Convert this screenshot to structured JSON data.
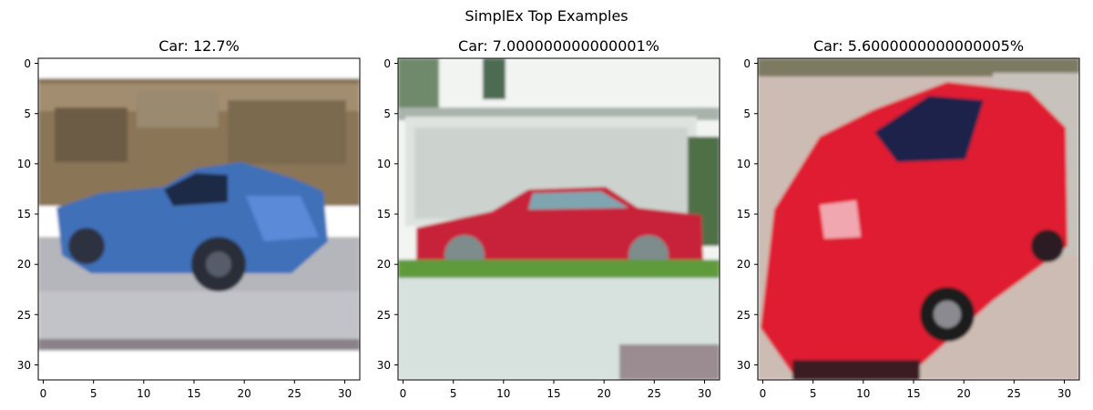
{
  "figure": {
    "title": "SimplEx Top Examples"
  },
  "panels": [
    {
      "title": "Car: 12.7%",
      "image": "thumbnail-blue-sports-car",
      "xticks": [
        "0",
        "5",
        "10",
        "15",
        "20",
        "25",
        "30"
      ],
      "yticks": [
        "0",
        "5",
        "10",
        "15",
        "20",
        "25",
        "30"
      ]
    },
    {
      "title": "Car: 7.000000000000001%",
      "image": "thumbnail-red-car-in-front-of-garage",
      "xticks": [
        "0",
        "5",
        "10",
        "15",
        "20",
        "25",
        "30"
      ],
      "yticks": [
        "0",
        "5",
        "10",
        "15",
        "20",
        "25",
        "30"
      ]
    },
    {
      "title": "Car: 5.6000000000000005%",
      "image": "thumbnail-red-car-on-street",
      "xticks": [
        "0",
        "5",
        "10",
        "15",
        "20",
        "25",
        "30"
      ],
      "yticks": [
        "0",
        "5",
        "10",
        "15",
        "20",
        "25",
        "30"
      ]
    }
  ],
  "colors": {
    "car_blue": "#3f6fb8",
    "car_red_1": "#c8233a",
    "car_red_2": "#e01a32",
    "garage_white": "#dfe3e0",
    "grass_green": "#5f9a3a",
    "road_grey": "#b5b6bc"
  }
}
